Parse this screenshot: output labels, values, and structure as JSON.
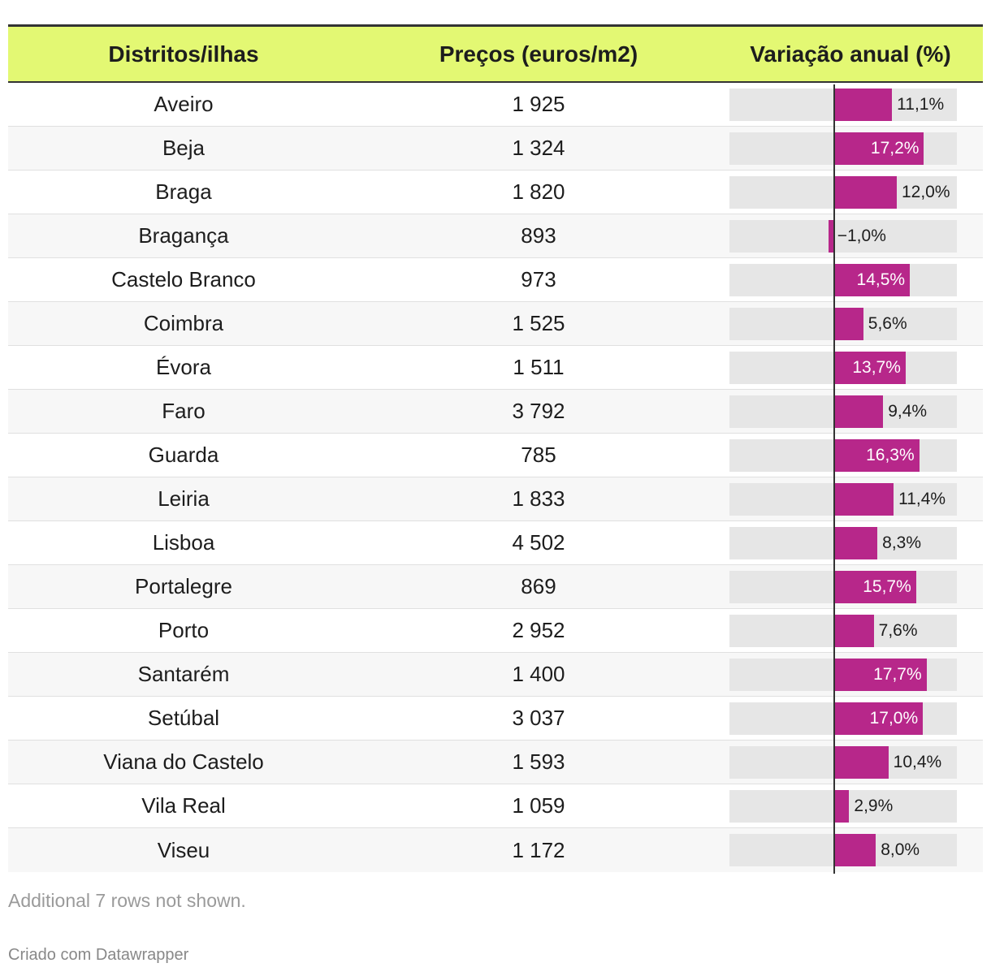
{
  "chart_data": {
    "type": "table",
    "columns": [
      "Distritos/ilhas",
      "Preços (euros/m2)",
      "Variação anual (%)"
    ],
    "rows": [
      {
        "district": "Aveiro",
        "price": "1 925",
        "change": 11.1,
        "change_label": "11,1%"
      },
      {
        "district": "Beja",
        "price": "1 324",
        "change": 17.2,
        "change_label": "17,2%"
      },
      {
        "district": "Braga",
        "price": "1 820",
        "change": 12.0,
        "change_label": "12,0%"
      },
      {
        "district": "Bragança",
        "price": "893",
        "change": -1.0,
        "change_label": "−1,0%"
      },
      {
        "district": "Castelo Branco",
        "price": "973",
        "change": 14.5,
        "change_label": "14,5%"
      },
      {
        "district": "Coimbra",
        "price": "1 525",
        "change": 5.6,
        "change_label": "5,6%"
      },
      {
        "district": "Évora",
        "price": "1 511",
        "change": 13.7,
        "change_label": "13,7%"
      },
      {
        "district": "Faro",
        "price": "3 792",
        "change": 9.4,
        "change_label": "9,4%"
      },
      {
        "district": "Guarda",
        "price": "785",
        "change": 16.3,
        "change_label": "16,3%"
      },
      {
        "district": "Leiria",
        "price": "1 833",
        "change": 11.4,
        "change_label": "11,4%"
      },
      {
        "district": "Lisboa",
        "price": "4 502",
        "change": 8.3,
        "change_label": "8,3%"
      },
      {
        "district": "Portalegre",
        "price": "869",
        "change": 15.7,
        "change_label": "15,7%"
      },
      {
        "district": "Porto",
        "price": "2 952",
        "change": 7.6,
        "change_label": "7,6%"
      },
      {
        "district": "Santarém",
        "price": "1 400",
        "change": 17.7,
        "change_label": "17,7%"
      },
      {
        "district": "Setúbal",
        "price": "3 037",
        "change": 17.0,
        "change_label": "17,0%"
      },
      {
        "district": "Viana do Castelo",
        "price": "1 593",
        "change": 10.4,
        "change_label": "10,4%"
      },
      {
        "district": "Vila Real",
        "price": "1 059",
        "change": 2.9,
        "change_label": "2,9%"
      },
      {
        "district": "Viseu",
        "price": "1 172",
        "change": 8.0,
        "change_label": "8,0%"
      }
    ],
    "bar_domain": [
      -20,
      23.5
    ],
    "colors": {
      "header_bg": "#e3f873",
      "bar": "#b7278a",
      "track": "#e6e6e6"
    }
  },
  "footer": {
    "note": "Additional 7 rows not shown.",
    "credit": "Criado com Datawrapper"
  }
}
